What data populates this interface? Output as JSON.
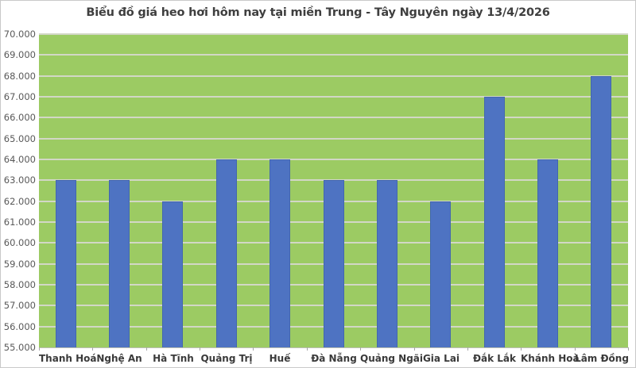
{
  "chart_data": {
    "type": "bar",
    "title": "Biểu đồ giá heo hơi hôm nay tại miền Trung - Tây Nguyên ngày 13/4/2026",
    "categories": [
      "Thanh Hoá",
      "Nghệ An",
      "Hà Tĩnh",
      "Quảng Trị",
      "Huế",
      "Đà Nẵng",
      "Quảng Ngãi",
      "Gia Lai",
      "Đắk Lắk",
      "Khánh Hoà",
      "Lâm Đồng"
    ],
    "values": [
      63000,
      63000,
      62000,
      64000,
      64000,
      63000,
      63000,
      62000,
      67000,
      64000,
      68000
    ],
    "xlabel": "",
    "ylabel": "",
    "ylim": [
      55000,
      70000
    ],
    "ytick_step": 1000,
    "ytick_labels": [
      "55.000",
      "56.000",
      "57.000",
      "58.000",
      "59.000",
      "60.000",
      "61.000",
      "62.000",
      "63.000",
      "64.000",
      "65.000",
      "66.000",
      "67.000",
      "68.000",
      "69.000",
      "70.000"
    ],
    "grid": true,
    "legend_position": "none",
    "colors": {
      "plot_bg": "#9ccb63",
      "bar_fill": "#4e73c2",
      "bar_border": "#4367ae",
      "gridline": "#d2d7c6",
      "axis_line": "#bcc0b2",
      "tick_mark": "#a6a6a6",
      "title_text": "#3f3f3f",
      "ytick_text": "#595959",
      "xtick_text": "#3a3a3a"
    }
  }
}
